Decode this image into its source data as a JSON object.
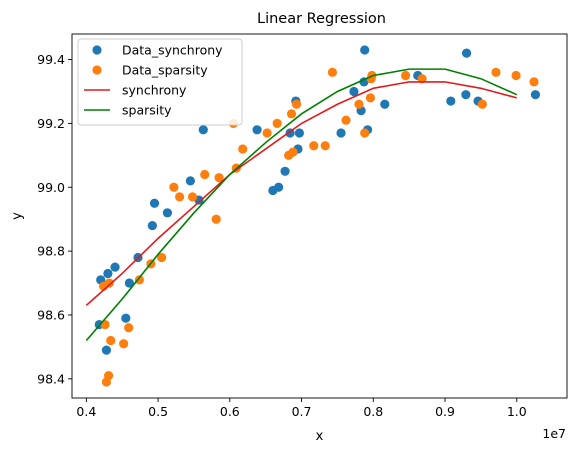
{
  "chart_data": {
    "type": "scatter",
    "title": "Linear Regression",
    "xlabel": "x",
    "ylabel": "y",
    "x_offset_label": "1e7",
    "xlim": [
      3800000,
      10700000
    ],
    "ylim": [
      98.34,
      99.48
    ],
    "x_ticks": [
      4000000,
      5000000,
      6000000,
      7000000,
      8000000,
      9000000,
      10000000
    ],
    "x_tick_labels": [
      "0.4",
      "0.5",
      "0.6",
      "0.7",
      "0.8",
      "0.9",
      "1.0"
    ],
    "y_ticks": [
      98.4,
      98.6,
      98.8,
      99.0,
      99.2,
      99.4
    ],
    "y_tick_labels": [
      "98.4",
      "98.6",
      "98.8",
      "99.0",
      "99.2",
      "99.4"
    ],
    "grid": false,
    "legend_position": "top-left",
    "scatter_series": [
      {
        "name": "Data_synchrony",
        "color": "#1f77b4",
        "points": [
          [
            4180000,
            98.57
          ],
          [
            4200000,
            98.71
          ],
          [
            4280000,
            98.49
          ],
          [
            4300000,
            98.73
          ],
          [
            4400000,
            98.75
          ],
          [
            4550000,
            98.59
          ],
          [
            4600000,
            98.7
          ],
          [
            4720000,
            98.78
          ],
          [
            4920000,
            98.88
          ],
          [
            4950000,
            98.95
          ],
          [
            5130000,
            98.92
          ],
          [
            5450000,
            99.02
          ],
          [
            5570000,
            98.96
          ],
          [
            5630000,
            99.18
          ],
          [
            6380000,
            99.18
          ],
          [
            6600000,
            98.99
          ],
          [
            6680000,
            99.0
          ],
          [
            6770000,
            99.05
          ],
          [
            6840000,
            99.17
          ],
          [
            6920000,
            99.27
          ],
          [
            6950000,
            99.12
          ],
          [
            6970000,
            99.17
          ],
          [
            7550000,
            99.17
          ],
          [
            7730000,
            99.3
          ],
          [
            7830000,
            99.24
          ],
          [
            7870000,
            99.33
          ],
          [
            7880000,
            99.43
          ],
          [
            7920000,
            99.18
          ],
          [
            8160000,
            99.26
          ],
          [
            8620000,
            99.35
          ],
          [
            9080000,
            99.27
          ],
          [
            9290000,
            99.29
          ],
          [
            9300000,
            99.42
          ],
          [
            9460000,
            99.27
          ],
          [
            10260000,
            99.29
          ]
        ]
      },
      {
        "name": "Data_sparsity",
        "color": "#ff7f0e",
        "points": [
          [
            4240000,
            98.69
          ],
          [
            4260000,
            98.57
          ],
          [
            4280000,
            98.39
          ],
          [
            4310000,
            98.41
          ],
          [
            4320000,
            98.7
          ],
          [
            4340000,
            98.52
          ],
          [
            4520000,
            98.51
          ],
          [
            4590000,
            98.56
          ],
          [
            4740000,
            98.71
          ],
          [
            4900000,
            98.76
          ],
          [
            5050000,
            98.78
          ],
          [
            5220000,
            99.0
          ],
          [
            5300000,
            98.97
          ],
          [
            5480000,
            98.97
          ],
          [
            5650000,
            99.04
          ],
          [
            5810000,
            98.9
          ],
          [
            5850000,
            99.03
          ],
          [
            6050000,
            99.2
          ],
          [
            6090000,
            99.06
          ],
          [
            6180000,
            99.12
          ],
          [
            6520000,
            99.17
          ],
          [
            6660000,
            99.2
          ],
          [
            6820000,
            99.1
          ],
          [
            6860000,
            99.23
          ],
          [
            6880000,
            99.11
          ],
          [
            6930000,
            99.26
          ],
          [
            7170000,
            99.13
          ],
          [
            7330000,
            99.13
          ],
          [
            7430000,
            99.36
          ],
          [
            7620000,
            99.21
          ],
          [
            7800000,
            99.26
          ],
          [
            7880000,
            99.17
          ],
          [
            7960000,
            99.28
          ],
          [
            7970000,
            99.34
          ],
          [
            7980000,
            99.35
          ],
          [
            8450000,
            99.35
          ],
          [
            8680000,
            99.34
          ],
          [
            9520000,
            99.26
          ],
          [
            9710000,
            99.36
          ],
          [
            9990000,
            99.35
          ],
          [
            10240000,
            99.33
          ]
        ]
      }
    ],
    "line_series": [
      {
        "name": "synchrony",
        "color": "#e31a1c",
        "x": [
          4000000,
          4500000,
          5000000,
          5500000,
          6000000,
          6500000,
          7000000,
          7500000,
          8000000,
          8500000,
          9000000,
          9500000,
          10000000
        ],
        "y": [
          98.63,
          98.73,
          98.84,
          98.94,
          99.04,
          99.12,
          99.2,
          99.26,
          99.31,
          99.33,
          99.33,
          99.31,
          99.28
        ]
      },
      {
        "name": "sparsity",
        "color": "#008000",
        "x": [
          4000000,
          4500000,
          5000000,
          5500000,
          6000000,
          6500000,
          7000000,
          7500000,
          8000000,
          8500000,
          9000000,
          9500000,
          10000000
        ],
        "y": [
          98.52,
          98.65,
          98.79,
          98.92,
          99.04,
          99.14,
          99.23,
          99.3,
          99.35,
          99.37,
          99.37,
          99.34,
          99.29
        ]
      }
    ]
  }
}
